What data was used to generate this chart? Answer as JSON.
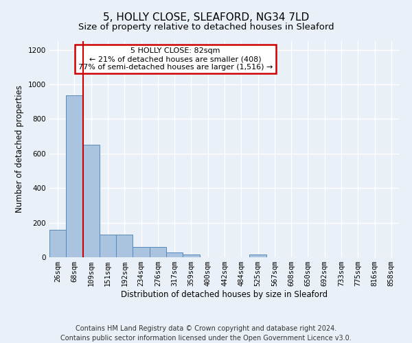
{
  "title": "5, HOLLY CLOSE, SLEAFORD, NG34 7LD",
  "subtitle": "Size of property relative to detached houses in Sleaford",
  "xlabel": "Distribution of detached houses by size in Sleaford",
  "ylabel": "Number of detached properties",
  "categories": [
    "26sqm",
    "68sqm",
    "109sqm",
    "151sqm",
    "192sqm",
    "234sqm",
    "276sqm",
    "317sqm",
    "359sqm",
    "400sqm",
    "442sqm",
    "484sqm",
    "525sqm",
    "567sqm",
    "608sqm",
    "650sqm",
    "692sqm",
    "733sqm",
    "775sqm",
    "816sqm",
    "858sqm"
  ],
  "values": [
    160,
    935,
    650,
    130,
    130,
    60,
    60,
    27,
    15,
    0,
    0,
    0,
    15,
    0,
    0,
    0,
    0,
    0,
    0,
    0,
    0
  ],
  "bar_color": "#aac4e0",
  "bar_edge_color": "#5588bb",
  "redline_x": 1.5,
  "annotation_text": "5 HOLLY CLOSE: 82sqm\n← 21% of detached houses are smaller (408)\n77% of semi-detached houses are larger (1,516) →",
  "annotation_box_color": "#ffffff",
  "annotation_box_edge": "#cc0000",
  "redline_color": "#cc0000",
  "ylim": [
    0,
    1250
  ],
  "yticks": [
    0,
    200,
    400,
    600,
    800,
    1000,
    1200
  ],
  "footer_line1": "Contains HM Land Registry data © Crown copyright and database right 2024.",
  "footer_line2": "Contains public sector information licensed under the Open Government Licence v3.0.",
  "bg_color": "#eaf0f7",
  "plot_bg_color": "#eaf0f7",
  "grid_color": "#ffffff",
  "title_fontsize": 11,
  "subtitle_fontsize": 9.5,
  "axis_label_fontsize": 8.5,
  "tick_fontsize": 7.5,
  "footer_fontsize": 7,
  "annotation_fontsize": 8
}
